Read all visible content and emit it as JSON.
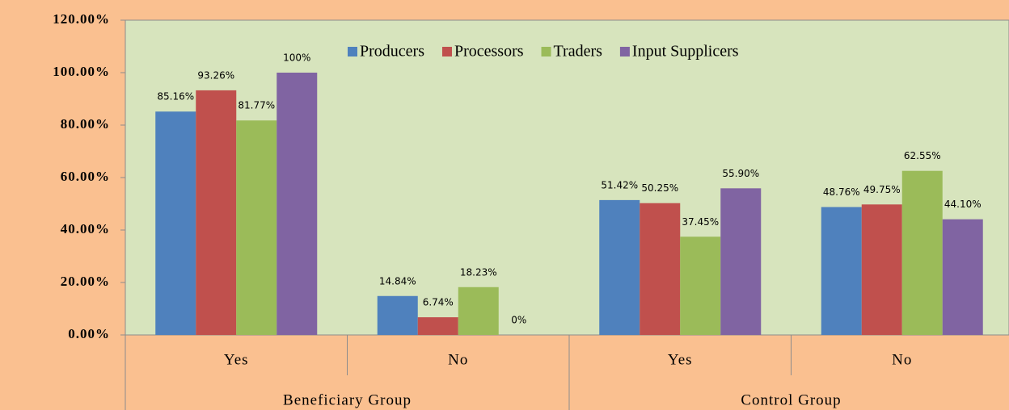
{
  "chart_data": {
    "type": "bar",
    "categories": [
      "Yes",
      "No",
      "Yes",
      "No"
    ],
    "groups": [
      "Beneficiary Group",
      "Control Group"
    ],
    "series": [
      {
        "name": "Producers",
        "color": "#4f81bd",
        "values": [
          85.16,
          14.84,
          51.42,
          48.76
        ],
        "value_labels": [
          "85.16%",
          "14.84%",
          "51.42%",
          "48.76%"
        ]
      },
      {
        "name": "Processors",
        "color": "#c0504d",
        "values": [
          93.26,
          6.74,
          50.25,
          49.75
        ],
        "value_labels": [
          "93.26%",
          "6.74%",
          "50.25%",
          "49.75%"
        ]
      },
      {
        "name": "Traders",
        "color": "#9bbb59",
        "values": [
          81.77,
          18.23,
          37.45,
          62.55
        ],
        "value_labels": [
          "81.77%",
          "18.23%",
          "37.45%",
          "62.55%"
        ]
      },
      {
        "name": "Input Supplicers",
        "color": "#8064a2",
        "values": [
          100,
          0,
          55.9,
          44.1
        ],
        "value_labels": [
          "100%",
          "0%",
          "55.90%",
          "44.10%"
        ]
      }
    ],
    "ylim": [
      0,
      120
    ],
    "yticks": [
      {
        "value": 0,
        "label": "0.00%"
      },
      {
        "value": 20,
        "label": "20.00%"
      },
      {
        "value": 40,
        "label": "40.00%"
      },
      {
        "value": 60,
        "label": "60.00%"
      },
      {
        "value": 80,
        "label": "80.00%"
      },
      {
        "value": 100,
        "label": "100.00%"
      },
      {
        "value": 120,
        "label": "120.00%"
      }
    ],
    "legend": "top"
  }
}
